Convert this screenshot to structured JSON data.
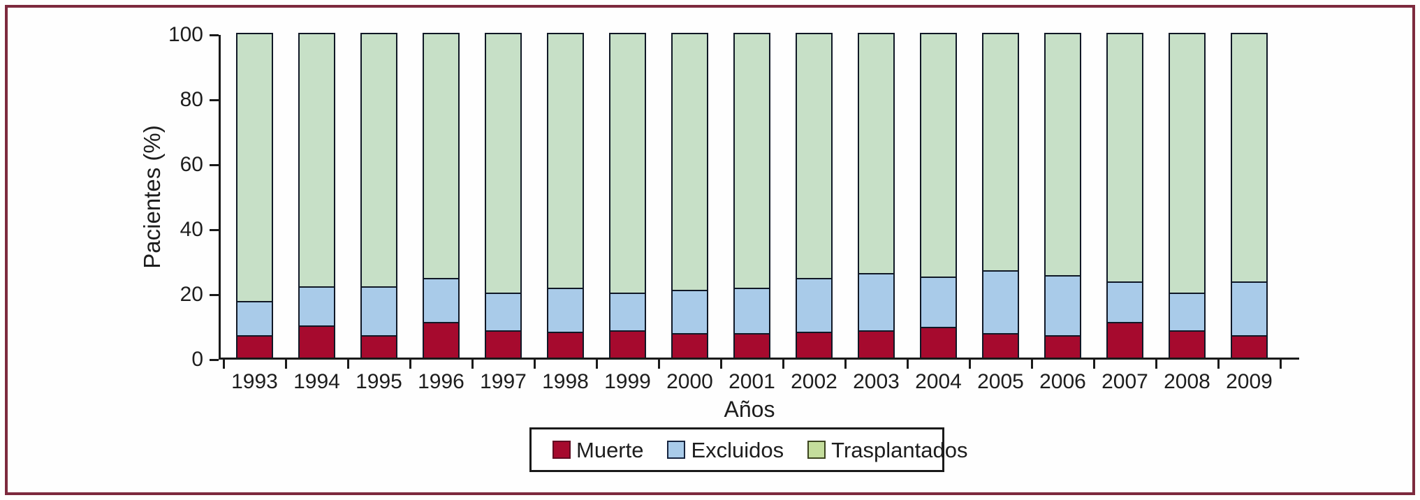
{
  "frame": {
    "border_color": "#7d2a3e"
  },
  "chart_data": {
    "type": "bar",
    "stacked": true,
    "title": "",
    "xlabel": "Años",
    "ylabel": "Pacientes (%)",
    "ylim": [
      0,
      100
    ],
    "yticks": [
      0,
      20,
      40,
      60,
      80,
      100
    ],
    "grid": false,
    "legend_position": "bottom",
    "categories": [
      "1993",
      "1994",
      "1995",
      "1996",
      "1997",
      "1998",
      "1999",
      "2000",
      "2001",
      "2002",
      "2003",
      "2004",
      "2005",
      "2006",
      "2007",
      "2008",
      "2009"
    ],
    "series": [
      {
        "name": "Muerte",
        "color": "#a60a2e",
        "swatch_border": "#5f0c22",
        "values": [
          6.5,
          9.5,
          6.5,
          10.5,
          8,
          7.5,
          8,
          7,
          7,
          7.5,
          8,
          9,
          7,
          6.5,
          10.5,
          8,
          6.5
        ]
      },
      {
        "name": "Excluidos",
        "color": "#a9cbe9",
        "swatch_border": "#16243f",
        "values": [
          10.5,
          12,
          15,
          13.5,
          11.5,
          13.5,
          11.5,
          13.5,
          14,
          16.5,
          17.5,
          15.5,
          19.5,
          18.5,
          12.5,
          11.5,
          16.5
        ]
      },
      {
        "name": "Trasplantados",
        "color": "#c7e0c7",
        "legend_swatch_color": "#c4dd9c",
        "swatch_border": "#3c4420",
        "values": [
          83,
          78.5,
          78.5,
          76,
          80.5,
          79,
          80.5,
          79.5,
          79,
          76,
          74.5,
          75.5,
          73.5,
          75,
          77,
          80.5,
          77
        ]
      }
    ],
    "outline_color": "#101826",
    "axis_color": "#1a1a1a"
  }
}
